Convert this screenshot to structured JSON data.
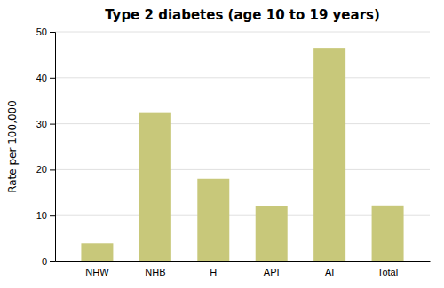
{
  "chart_data": {
    "type": "bar",
    "title": "Type 2 diabetes (age 10 to 19 years)",
    "categories": [
      "NHW",
      "NHB",
      "H",
      "API",
      "AI",
      "Total"
    ],
    "values": [
      4.0,
      32.5,
      18.0,
      12.0,
      46.5,
      12.2
    ],
    "color": "#c8c87a",
    "ylabel": "Rate per 100,000",
    "ylim": [
      0,
      50
    ],
    "yticks": [
      0,
      10,
      20,
      30,
      40,
      50
    ],
    "grid": true
  }
}
